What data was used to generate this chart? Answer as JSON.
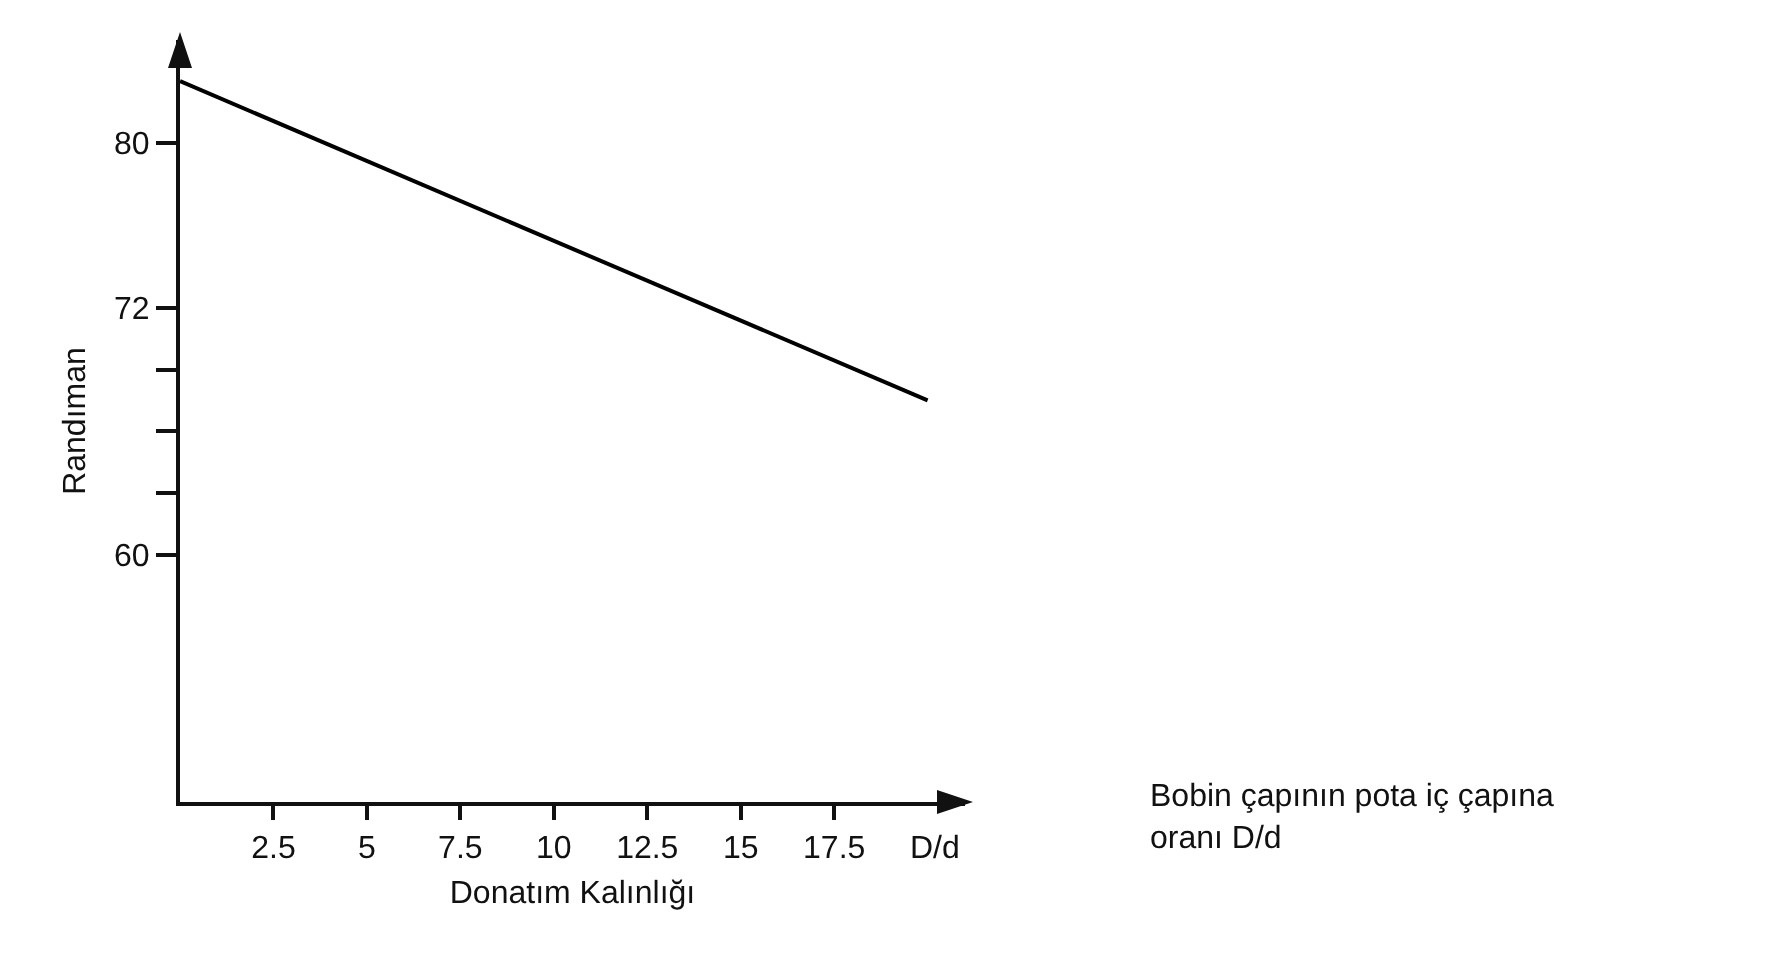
{
  "chart_data": {
    "type": "line",
    "xlabel": "Donatım Kalınlığı",
    "ylabel": "Randıman",
    "x": [
      0,
      20
    ],
    "series": [
      {
        "color": "#000000",
        "values": [
          83,
          67.5
        ]
      }
    ],
    "xlim": [
      0,
      21
    ],
    "ylim": [
      48,
      85
    ],
    "xticks": [
      2.5,
      5,
      7.5,
      10,
      12.5,
      15,
      17.5
    ],
    "yticks": [
      60,
      {
        "value": 63,
        "label": null
      },
      {
        "value": 66,
        "label": null
      },
      {
        "value": 69,
        "label": null
      },
      72,
      80
    ],
    "annotations": [
      "D/d",
      "Bobin çapının pota iç çapına oranı D/d"
    ],
    "grid": false,
    "marker": "none",
    "line_style": "solid"
  }
}
